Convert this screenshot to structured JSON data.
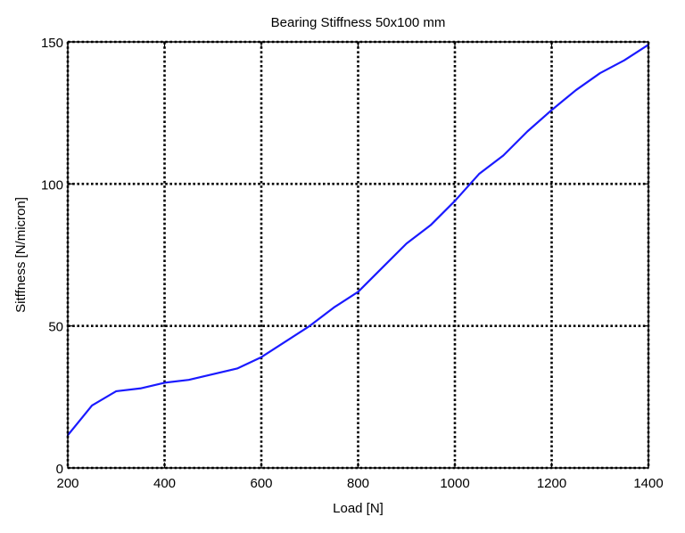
{
  "chart_data": {
    "type": "line",
    "title": "Bearing Stiffness 50x100 mm",
    "xlabel": "Load [N]",
    "ylabel": "Sitffness  [N/micron]",
    "xlim": [
      200,
      1400
    ],
    "ylim": [
      0,
      150
    ],
    "xticks": [
      200,
      400,
      600,
      800,
      1000,
      1200,
      1400
    ],
    "yticks": [
      0,
      50,
      100,
      150
    ],
    "grid": true,
    "series_color": "#1a1aff",
    "series": [
      {
        "x": [
          200,
          250,
          300,
          350,
          400,
          450,
          500,
          550,
          600,
          650,
          700,
          750,
          800,
          850,
          900,
          950,
          1000,
          1050,
          1100,
          1150,
          1200,
          1250,
          1300,
          1350,
          1400
        ],
        "values": [
          11.5,
          22,
          27,
          28,
          30,
          31,
          33,
          35,
          39,
          44.5,
          50,
          56.5,
          62,
          70.5,
          79,
          85.5,
          94,
          103.5,
          110,
          118.5,
          126,
          133,
          139,
          143.5,
          149
        ]
      }
    ]
  }
}
